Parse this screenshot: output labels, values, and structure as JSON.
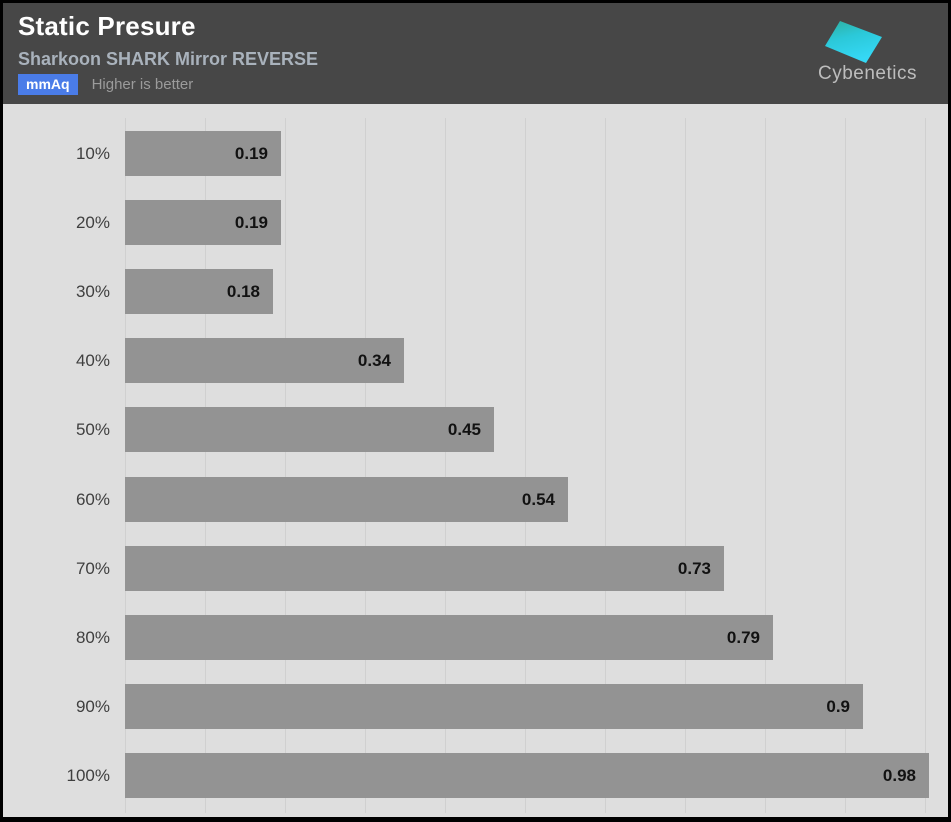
{
  "header": {
    "title": "Static Presure",
    "subtitle": "Sharkoon SHARK Mirror REVERSE",
    "unit_badge": "mmAq",
    "note": "Higher is better",
    "logo_text": "Cybenetics"
  },
  "colors": {
    "header_bg": "#474747",
    "chart_bg": "#dedede",
    "bar": "#939393",
    "gridline": "#d0d0d0",
    "badge_bg": "#4a7ce8",
    "subtitle_text": "#a9b2bc",
    "logo_cyan_top": "#2fae9f",
    "logo_cyan_bottom": "#35d8f5"
  },
  "chart_data": {
    "type": "bar",
    "orientation": "horizontal",
    "title": "Static Presure",
    "subtitle": "Sharkoon SHARK Mirror REVERSE",
    "unit": "mmAq",
    "note": "Higher is better",
    "categories": [
      "10%",
      "20%",
      "30%",
      "40%",
      "50%",
      "60%",
      "70%",
      "80%",
      "90%",
      "100%"
    ],
    "values": [
      0.19,
      0.19,
      0.18,
      0.34,
      0.45,
      0.54,
      0.73,
      0.79,
      0.9,
      0.98
    ],
    "value_labels": [
      "0.19",
      "0.19",
      "0.18",
      "0.34",
      "0.45",
      "0.54",
      "0.73",
      "0.79",
      "0.9",
      "0.98"
    ],
    "xlim": [
      0,
      1.0
    ],
    "grid": "vertical, ~0.1 spacing",
    "legend": "none"
  }
}
